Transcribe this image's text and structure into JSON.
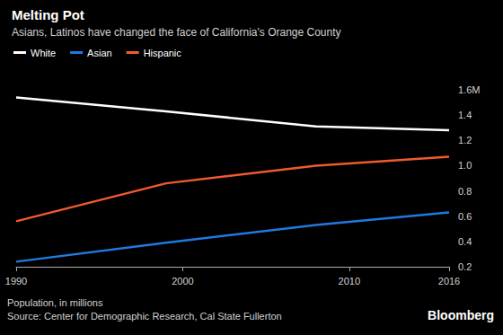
{
  "chart_data": {
    "type": "line",
    "title": "Melting Pot",
    "subtitle": "Asians, Latinos have changed the face of California's Orange County",
    "ylabel": "Population, in millions",
    "source": "Source: Center for Demographic Research, Cal State Fullerton",
    "credit": "Bloomberg",
    "x": [
      1990,
      1999,
      2008,
      2016
    ],
    "series": [
      {
        "name": "White",
        "color": "#ffffff",
        "values": [
          1.54,
          1.43,
          1.31,
          1.28
        ]
      },
      {
        "name": "Asian",
        "color": "#1f7ae0",
        "values": [
          0.24,
          0.39,
          0.53,
          0.63
        ]
      },
      {
        "name": "Hispanic",
        "color": "#ef5a2f",
        "values": [
          0.56,
          0.86,
          1.0,
          1.07
        ]
      }
    ],
    "xlim": [
      1990,
      2016
    ],
    "xticks": [
      1990,
      2000,
      2010,
      2016
    ],
    "ylim": [
      0.2,
      1.6
    ],
    "yticks": [
      0.2,
      0.4,
      0.6,
      0.8,
      {
        "value": 1,
        "label": "1.0"
      },
      1.2,
      1.4,
      {
        "value": 1.6,
        "label": "1.6M"
      }
    ],
    "grid": false,
    "legend": "top-left"
  }
}
